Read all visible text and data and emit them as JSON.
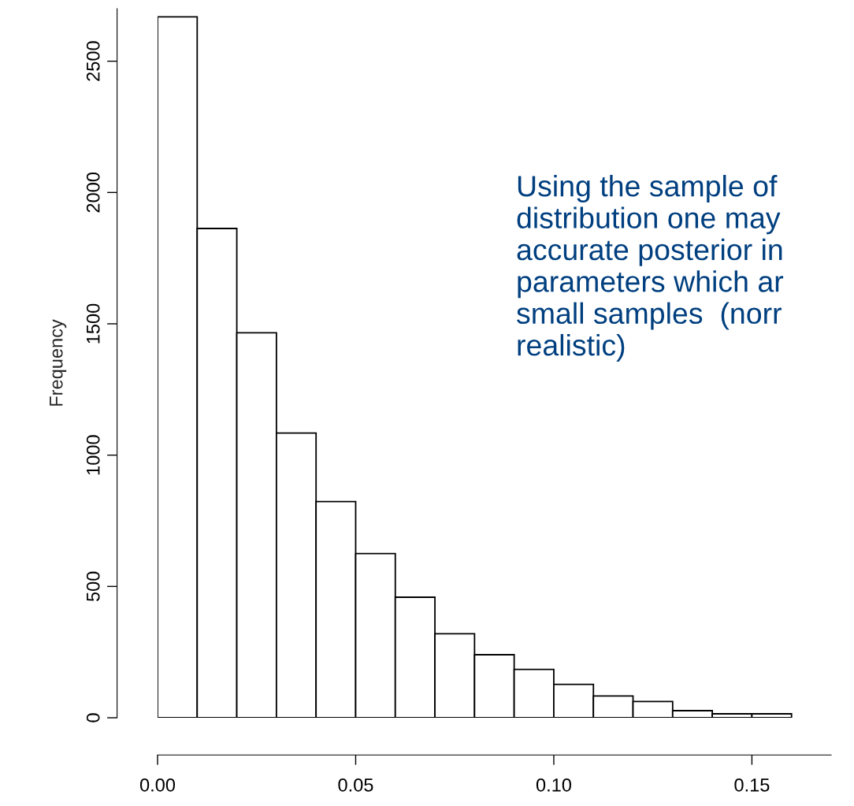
{
  "chart_data": {
    "type": "histogram",
    "ylabel": "Frequency",
    "bins": [
      0,
      0.01,
      0.02,
      0.03,
      0.04,
      0.05,
      0.06,
      0.07,
      0.08,
      0.09,
      0.1,
      0.11,
      0.12,
      0.13,
      0.14,
      0.15,
      0.16,
      0.17
    ],
    "values": [
      2669,
      1863,
      1466,
      1084,
      823,
      625,
      459,
      320,
      240,
      184,
      127,
      83,
      62,
      27,
      15,
      15,
      null
    ],
    "color": "#ffffff",
    "xlim": [
      0,
      0.17
    ],
    "ylim": [
      0,
      2700
    ],
    "xticks": [
      {
        "value": 0,
        "label": "0.00"
      },
      {
        "value": 0.05,
        "label": "0.05"
      },
      {
        "value": 0.1,
        "label": "0.10"
      },
      {
        "value": 0.15,
        "label": "0.15"
      }
    ],
    "yticks": [
      0,
      500,
      1000,
      1500,
      2000,
      2500
    ],
    "annotations": [
      "Using the sample of\ndistribution one may\naccurate posterior in\nparameters which ar\nsmall samples  (norr\nrealistic)"
    ]
  }
}
